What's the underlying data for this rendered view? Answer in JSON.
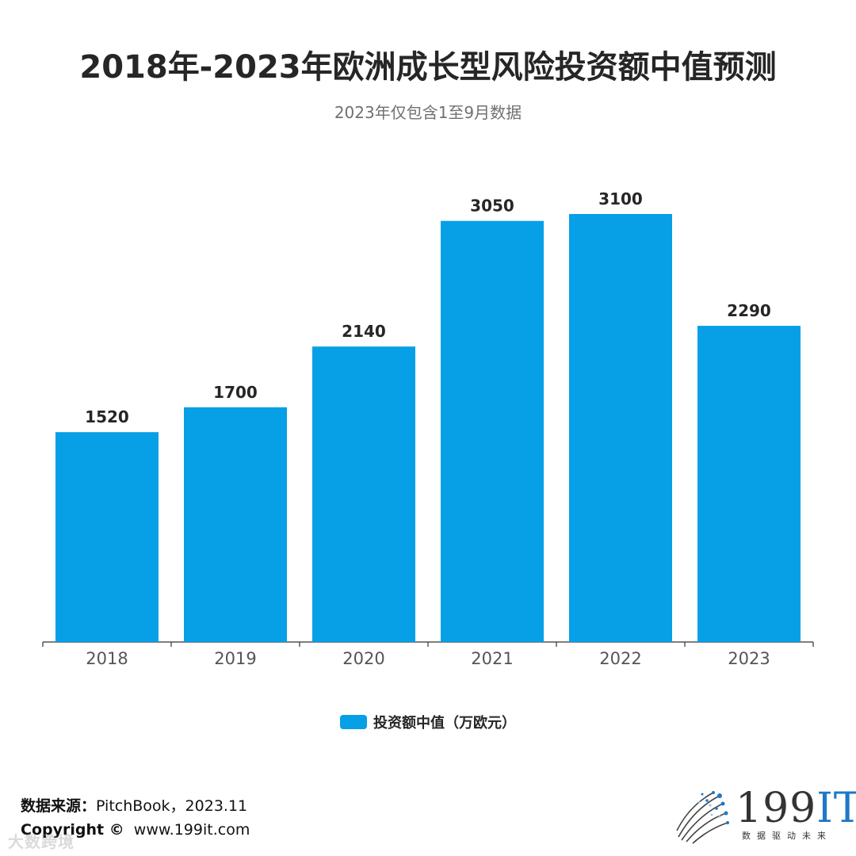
{
  "header": {
    "title": "2018年-2023年欧洲成长型风险投资额中值预测",
    "subtitle": "2023年仅包含1至9月数据"
  },
  "chart_data": {
    "type": "bar",
    "title": "2018年-2023年欧洲成长型风险投资额中值预测",
    "subtitle": "2023年仅包含1至9月数据",
    "categories": [
      "2018",
      "2019",
      "2020",
      "2021",
      "2022",
      "2023"
    ],
    "series": [
      {
        "name": "投资额中值（万欧元）",
        "values": [
          1520,
          1700,
          2140,
          3050,
          3100,
          2290
        ],
        "color": "#079fe6"
      }
    ],
    "ylim": [
      0,
      3100
    ],
    "grid": false,
    "legend_position": "bottom-center",
    "data_labels": true
  },
  "legend": {
    "label": "投资额中值（万欧元）",
    "color": "#079fe6"
  },
  "footer": {
    "source_label": "数据来源：",
    "source_value": "PitchBook，2023.11",
    "copyright_label": "Copyright ©",
    "copyright_value": "www.199it.com",
    "watermark": "大数跨境"
  },
  "logo": {
    "number": "199",
    "suffix": "IT",
    "slogan": "数据驱动未来",
    "icon": "dotted-globe-icon"
  }
}
